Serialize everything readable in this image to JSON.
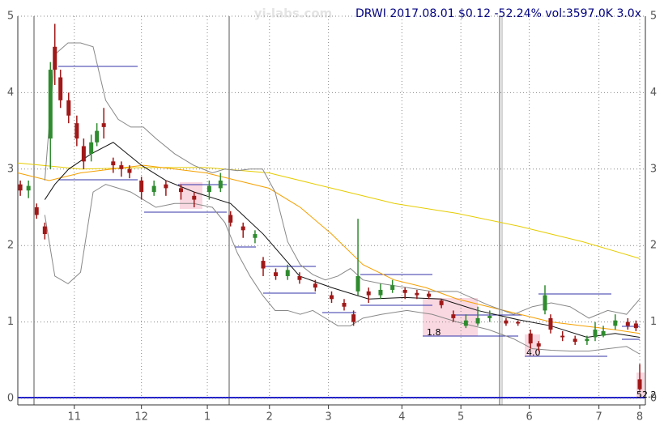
{
  "chart_data": {
    "type": "candlestick",
    "title": "DRWI 2017.08.01 $0.12 -52.24% vol:3597.0K 3.0x",
    "watermark": "yi-labs.com",
    "annotations": [
      "1.8",
      "4.0",
      "52.2"
    ],
    "up_color": "#2e8b2e",
    "down_color": "#a01818",
    "grid": true,
    "xlim": [
      0,
      100
    ],
    "ylim": [
      0,
      5
    ],
    "yticks": [
      0,
      1,
      2,
      3,
      4,
      5
    ],
    "xticks": [
      {
        "value": 9.0,
        "label": "11"
      },
      {
        "value": 19.7,
        "label": "12"
      },
      {
        "value": 30.2,
        "label": "1"
      },
      {
        "value": 40.1,
        "label": "2"
      },
      {
        "value": 49.5,
        "label": "3"
      },
      {
        "value": 61.2,
        "label": "4"
      },
      {
        "value": 70.6,
        "label": "5"
      },
      {
        "value": 81.5,
        "label": "6"
      },
      {
        "value": 92.6,
        "label": "7"
      },
      {
        "value": 99.1,
        "label": "8"
      }
    ],
    "x": [
      0.4,
      1.7,
      3.0,
      4.3,
      5.2,
      5.9,
      6.8,
      8.1,
      9.4,
      10.5,
      11.7,
      12.6,
      13.7,
      15.2,
      16.5,
      17.8,
      19.7,
      21.7,
      23.6,
      26,
      28.1,
      30.5,
      32.3,
      33.9,
      35.9,
      37.8,
      39.1,
      41.1,
      43,
      44.9,
      47.4,
      50,
      52,
      53.5,
      54.2,
      55.9,
      57.8,
      59.7,
      61.7,
      63.6,
      65.5,
      67.5,
      69.4,
      71.4,
      73.3,
      75.2,
      77.8,
      79.7,
      81.7,
      83,
      84,
      84.9,
      86.8,
      88.8,
      90.7,
      92,
      93.3,
      95.2,
      97.2,
      98.5,
      99.1
    ],
    "open": [
      2.8,
      2.72,
      2.5,
      2.25,
      3.4,
      4.6,
      4.2,
      3.9,
      3.6,
      3.3,
      3.2,
      3.35,
      3.6,
      3.1,
      3.05,
      3.0,
      2.85,
      2.7,
      2.8,
      2.75,
      2.65,
      2.7,
      2.75,
      2.4,
      2.25,
      2.1,
      1.8,
      1.65,
      1.6,
      1.6,
      1.5,
      1.35,
      1.25,
      1.1,
      1.4,
      1.4,
      1.35,
      1.42,
      1.42,
      1.38,
      1.37,
      1.28,
      1.1,
      0.95,
      0.98,
      1.05,
      1.02,
      1.0,
      0.85,
      0.72,
      1.15,
      1.05,
      0.82,
      0.78,
      0.75,
      0.8,
      0.82,
      0.95,
      1.0,
      0.98,
      0.25
    ],
    "high": [
      2.85,
      2.85,
      2.55,
      2.3,
      4.4,
      4.9,
      4.3,
      4.0,
      3.7,
      3.4,
      3.45,
      3.6,
      3.8,
      3.15,
      3.1,
      3.05,
      2.9,
      2.85,
      2.85,
      2.8,
      2.7,
      2.85,
      2.95,
      2.45,
      2.3,
      2.2,
      1.85,
      1.7,
      1.75,
      1.65,
      1.55,
      1.4,
      1.3,
      1.15,
      2.35,
      1.45,
      1.5,
      1.55,
      1.45,
      1.42,
      1.4,
      1.3,
      1.15,
      1.1,
      1.2,
      1.15,
      1.05,
      1.02,
      0.9,
      0.75,
      1.48,
      1.1,
      0.88,
      0.82,
      0.82,
      1.0,
      0.95,
      1.1,
      1.05,
      1.02,
      0.45
    ],
    "low": [
      2.65,
      2.62,
      2.35,
      2.08,
      3.0,
      4.1,
      3.8,
      3.6,
      3.3,
      3.0,
      3.1,
      3.3,
      3.4,
      2.95,
      2.9,
      2.88,
      2.6,
      2.65,
      2.65,
      2.6,
      2.5,
      2.6,
      2.7,
      2.25,
      2.1,
      2.03,
      1.6,
      1.55,
      1.55,
      1.5,
      1.4,
      1.25,
      1.15,
      0.95,
      1.35,
      1.25,
      1.3,
      1.38,
      1.3,
      1.3,
      1.3,
      1.18,
      1.0,
      0.92,
      0.95,
      1.0,
      0.95,
      0.95,
      0.65,
      0.62,
      1.1,
      0.85,
      0.75,
      0.7,
      0.7,
      0.75,
      0.8,
      0.9,
      0.9,
      0.88,
      0.1
    ],
    "close": [
      2.72,
      2.78,
      2.4,
      2.15,
      4.3,
      4.3,
      3.9,
      3.7,
      3.4,
      3.1,
      3.35,
      3.5,
      3.55,
      3.05,
      3.0,
      2.95,
      2.7,
      2.78,
      2.75,
      2.7,
      2.6,
      2.78,
      2.85,
      2.3,
      2.2,
      2.15,
      1.7,
      1.6,
      1.68,
      1.55,
      1.45,
      1.3,
      1.2,
      1.0,
      1.6,
      1.35,
      1.42,
      1.48,
      1.38,
      1.35,
      1.33,
      1.22,
      1.05,
      1.02,
      1.05,
      1.08,
      0.98,
      0.98,
      0.72,
      0.68,
      1.35,
      0.9,
      0.8,
      0.74,
      0.78,
      0.9,
      0.88,
      1.02,
      0.95,
      0.92,
      0.12
    ],
    "lines": [
      {
        "color": "#e6cc00",
        "x": [
          0,
          10,
          20,
          30,
          40,
          50,
          60,
          70,
          80,
          90,
          99.1
        ],
        "values": [
          3.08,
          3.0,
          3.02,
          3.02,
          2.95,
          2.75,
          2.55,
          2.42,
          2.25,
          2.05,
          1.83
        ]
      },
      {
        "color": "#f5a000",
        "x": [
          0,
          5,
          10,
          15,
          20,
          25,
          30,
          35,
          40,
          45,
          50,
          55,
          60,
          65,
          70,
          75,
          80,
          85,
          90,
          95,
          99.1
        ],
        "values": [
          2.95,
          2.85,
          2.95,
          3.0,
          3.05,
          3.0,
          2.95,
          2.85,
          2.75,
          2.5,
          2.15,
          1.75,
          1.55,
          1.45,
          1.3,
          1.2,
          1.1,
          1.0,
          0.95,
          0.9,
          0.85
        ]
      },
      {
        "color": "#888888",
        "x": [
          4.3,
          5.9,
          8,
          10,
          12,
          14,
          16,
          18,
          20,
          22,
          25,
          28,
          31,
          33,
          35,
          37,
          39,
          41,
          43,
          45,
          47,
          49,
          51,
          53,
          55,
          58,
          62,
          66,
          70,
          75,
          79,
          82,
          85,
          88,
          91,
          94,
          97,
          99.1
        ],
        "values": [
          2.85,
          4.5,
          4.65,
          4.65,
          4.6,
          3.9,
          3.65,
          3.55,
          3.55,
          3.4,
          3.2,
          3.05,
          2.95,
          3.0,
          2.98,
          3.0,
          3.0,
          2.7,
          2.05,
          1.75,
          1.62,
          1.55,
          1.6,
          1.7,
          1.55,
          1.5,
          1.45,
          1.4,
          1.4,
          1.22,
          1.1,
          1.2,
          1.25,
          1.2,
          1.05,
          1.15,
          1.1,
          1.3
        ]
      },
      {
        "color": "#888888",
        "x": [
          4.3,
          5.9,
          8,
          10,
          12,
          14,
          16,
          18,
          20,
          22,
          25,
          28,
          31,
          33,
          35,
          37,
          39,
          41,
          43,
          45,
          47,
          49,
          51,
          53,
          55,
          58,
          62,
          66,
          70,
          75,
          79,
          82,
          85,
          88,
          91,
          94,
          97,
          99.1
        ],
        "values": [
          2.4,
          1.6,
          1.5,
          1.65,
          2.7,
          2.8,
          2.75,
          2.7,
          2.6,
          2.5,
          2.55,
          2.55,
          2.5,
          2.3,
          1.9,
          1.6,
          1.35,
          1.15,
          1.15,
          1.1,
          1.15,
          1.05,
          0.95,
          0.95,
          1.05,
          1.1,
          1.15,
          1.1,
          1.0,
          0.9,
          0.78,
          0.65,
          0.63,
          0.62,
          0.62,
          0.65,
          0.68,
          0.58
        ]
      },
      {
        "color": "#111111",
        "x": [
          4.3,
          5.9,
          8.1,
          11.7,
          15.2,
          19.7,
          23.6,
          28.1,
          33.9,
          39.1,
          44.9,
          50,
          55.9,
          61.7,
          67.5,
          73.3,
          79.7,
          84.9,
          90.7,
          95.2,
          99.1
        ],
        "values": [
          2.6,
          2.8,
          3.0,
          3.2,
          3.35,
          3.05,
          2.85,
          2.7,
          2.55,
          2.15,
          1.6,
          1.45,
          1.3,
          1.32,
          1.3,
          1.15,
          1.03,
          0.95,
          0.8,
          0.85,
          0.8
        ]
      }
    ]
  }
}
